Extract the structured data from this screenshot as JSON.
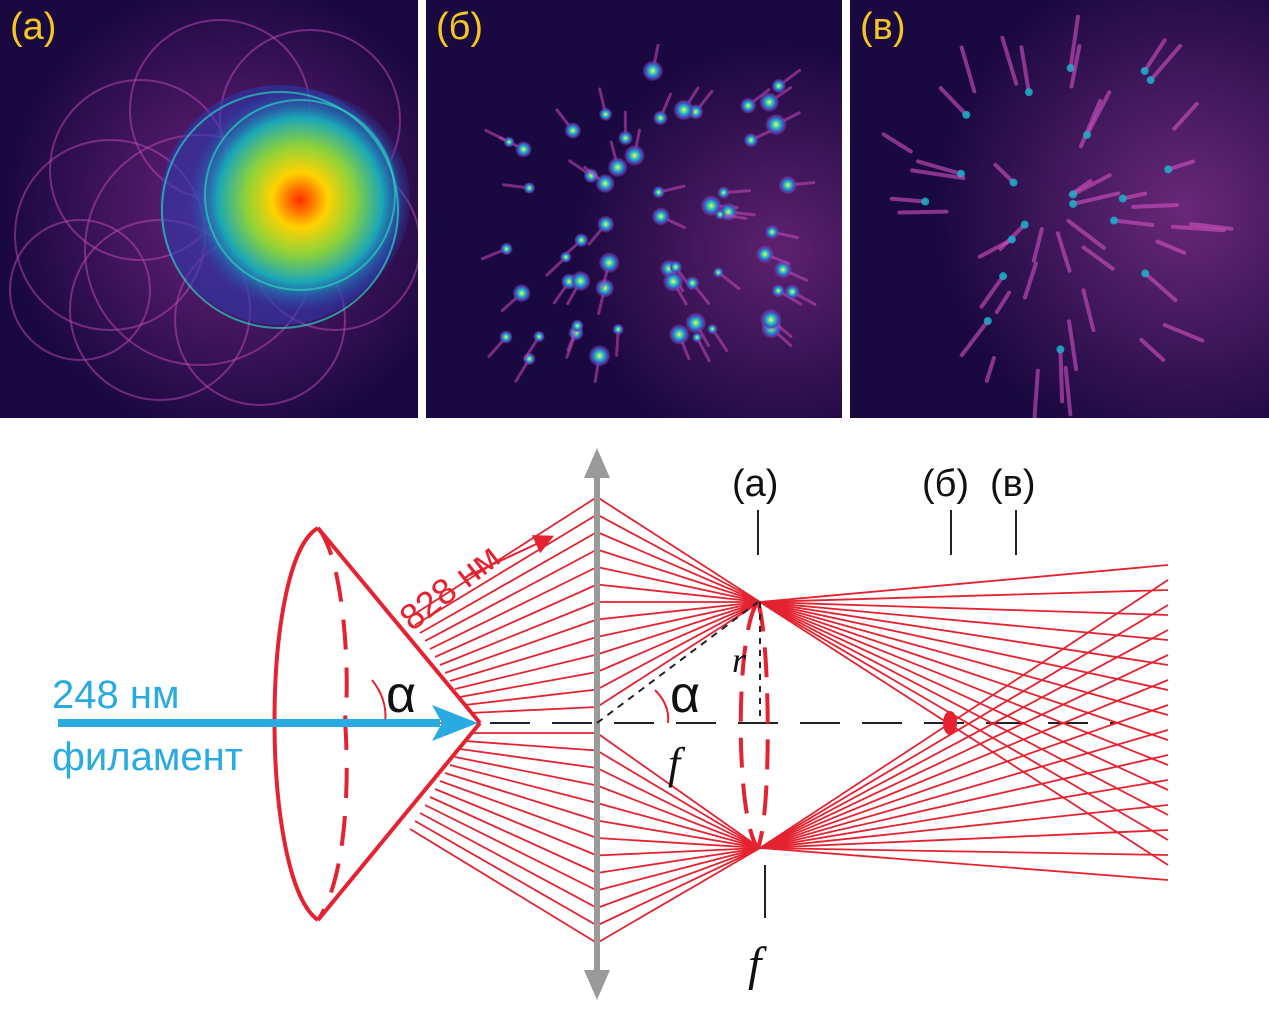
{
  "panels": [
    {
      "id": "a",
      "label": "(а)"
    },
    {
      "id": "b",
      "label": "(б)"
    },
    {
      "id": "c",
      "label": "(в)"
    }
  ],
  "diagram": {
    "uv_wavelength": "248 нм",
    "uv_label": "филамент",
    "ir_wavelength": "828 нм",
    "angle_symbol": "α",
    "radius_symbol": "r",
    "focal_symbol": "f",
    "plane_a": "(а)",
    "plane_b": "(б)",
    "plane_c": "(в)"
  },
  "colors": {
    "panel_background": "#1a0840",
    "label_yellow": "#f3c623",
    "beam_red": "#e42230",
    "uv_blue": "#29abe2",
    "lens_gray": "#9a9a9a"
  }
}
